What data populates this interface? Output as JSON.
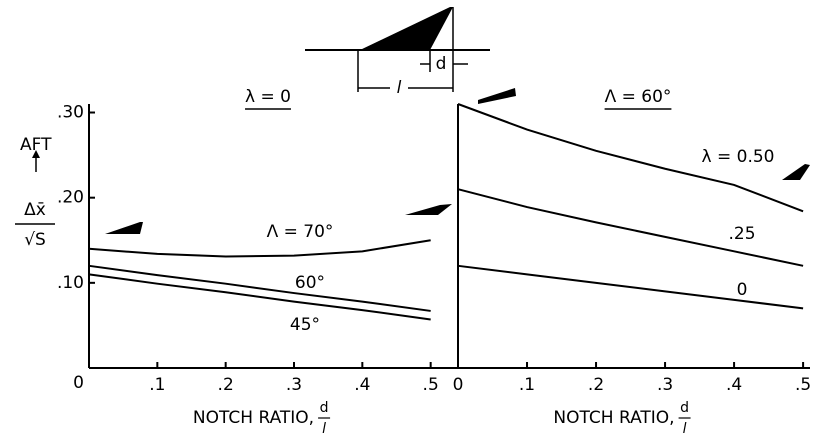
{
  "diagram": {
    "labels": [
      "d",
      "l"
    ]
  },
  "chart_data": [
    {
      "type": "line",
      "title": "λ = 0",
      "y_label_top": "AFT",
      "y_label_numerator": "Δx̄",
      "y_label_denominator": "√S",
      "x_label": "NOTCH RATIO,",
      "x_label_numerator": "d",
      "x_label_denominator": "l",
      "x": [
        0,
        0.1,
        0.2,
        0.3,
        0.4,
        0.5
      ],
      "series": [
        {
          "name": "Λ = 70°",
          "color": "#000000",
          "values": [
            0.14,
            0.134,
            0.131,
            0.132,
            0.137,
            0.15
          ]
        },
        {
          "name": "60°",
          "color": "#000000",
          "values": [
            0.12,
            0.109,
            0.099,
            0.088,
            0.078,
            0.067
          ]
        },
        {
          "name": "45°",
          "color": "#000000",
          "values": [
            0.11,
            0.099,
            0.089,
            0.078,
            0.068,
            0.057
          ]
        }
      ],
      "xlim": [
        0,
        0.54
      ],
      "ylim": [
        0,
        0.31
      ],
      "xticks": [
        {
          "value": 0.1,
          "label": ".1"
        },
        {
          "value": 0.2,
          "label": ".2"
        },
        {
          "value": 0.3,
          "label": ".3"
        },
        {
          "value": 0.4,
          "label": ".4"
        },
        {
          "value": 0.5,
          "label": ".5"
        }
      ],
      "yticks": [
        0,
        {
          "value": 0.1,
          "label": ".10"
        },
        {
          "value": 0.2,
          "label": ".20"
        },
        {
          "value": 0.3,
          "label": ".30"
        }
      ]
    },
    {
      "type": "line",
      "title": "Λ = 60°",
      "x_label": "NOTCH RATIO,",
      "x_label_numerator": "d",
      "x_label_denominator": "l",
      "x": [
        0,
        0.1,
        0.2,
        0.3,
        0.4,
        0.5
      ],
      "series": [
        {
          "name": "λ = 0.50",
          "color": "#000000",
          "values": [
            0.31,
            0.28,
            0.255,
            0.234,
            0.215,
            0.184
          ]
        },
        {
          "name": ".25",
          "color": "#000000",
          "values": [
            0.21,
            0.189,
            0.171,
            0.154,
            0.137,
            0.12
          ]
        },
        {
          "name": "0",
          "color": "#000000",
          "values": [
            0.12,
            0.11,
            0.1,
            0.09,
            0.08,
            0.07
          ]
        }
      ],
      "xlim": [
        0,
        0.51
      ],
      "ylim": [
        0,
        0.31
      ],
      "xticks": [
        0,
        {
          "value": 0.1,
          "label": ".1"
        },
        {
          "value": 0.2,
          "label": ".2"
        },
        {
          "value": 0.3,
          "label": ".3"
        },
        {
          "value": 0.4,
          "label": ".4"
        },
        {
          "value": 0.5,
          "label": ".5"
        }
      ]
    }
  ]
}
